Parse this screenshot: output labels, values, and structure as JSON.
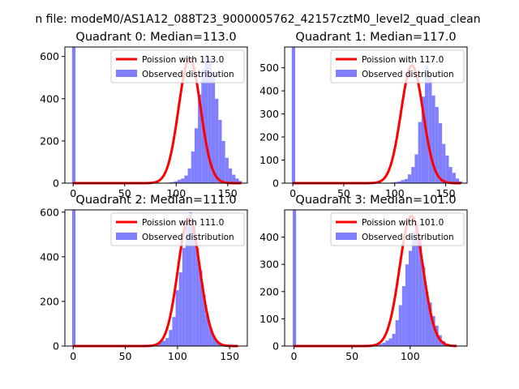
{
  "figure": {
    "suptitle": "n file: modeM0/AS1A12_088T23_9000005762_42157cztM0_level2_quad_clean"
  },
  "colors": {
    "poisson": "#ff0000",
    "observed": "#8080ff"
  },
  "chart_data": [
    {
      "type": "bar",
      "title": "Quadrant 0: Median=113.0",
      "xlim": [
        -8,
        169
      ],
      "ylim": [
        0,
        645
      ],
      "xticks": [
        0,
        50,
        100,
        150
      ],
      "yticks": [
        0,
        200,
        400,
        600
      ],
      "legend": "top-right",
      "poisson_label": "Poission with 113.0",
      "observed_label": "Observed distribution",
      "poisson": {
        "lambda": 113.0,
        "peak": 590,
        "x_range": [
          0,
          163
        ]
      },
      "histogram": {
        "bin_start": -1,
        "bin_width": 3.3,
        "counts": [
          645,
          0,
          0,
          0,
          0,
          0,
          0,
          0,
          0,
          0,
          0,
          0,
          0,
          0,
          0,
          0,
          0,
          0,
          0,
          0,
          0,
          0,
          0,
          0,
          0,
          0,
          0,
          0,
          3,
          5,
          9,
          16,
          22,
          36,
          70,
          150,
          260,
          420,
          540,
          610,
          590,
          530,
          400,
          300,
          200,
          120,
          70,
          40,
          22,
          10
        ]
      }
    },
    {
      "type": "bar",
      "title": "Quadrant 1: Median=117.0",
      "xlim": [
        -8,
        171
      ],
      "ylim": [
        0,
        590
      ],
      "xticks": [
        0,
        50,
        100,
        150
      ],
      "yticks": [
        0,
        100,
        200,
        300,
        400,
        500
      ],
      "legend": "top-right",
      "poisson_label": "Poission with 117.0",
      "observed_label": "Observed distribution",
      "poisson": {
        "lambda": 117.0,
        "peak": 510,
        "x_range": [
          0,
          165
        ]
      },
      "histogram": {
        "bin_start": -1,
        "bin_width": 3.35,
        "counts": [
          590,
          0,
          0,
          0,
          0,
          0,
          0,
          0,
          0,
          0,
          0,
          0,
          0,
          0,
          0,
          0,
          0,
          0,
          0,
          0,
          0,
          0,
          0,
          0,
          0,
          0,
          0,
          0,
          0,
          3,
          5,
          8,
          13,
          18,
          38,
          70,
          125,
          265,
          375,
          510,
          470,
          380,
          330,
          260,
          170,
          120,
          70,
          45,
          20,
          8
        ]
      }
    },
    {
      "type": "bar",
      "title": "Quadrant 2: Median=111.0",
      "xlim": [
        -8,
        167
      ],
      "ylim": [
        0,
        610
      ],
      "xticks": [
        0,
        50,
        100,
        150
      ],
      "yticks": [
        0,
        200,
        400,
        600
      ],
      "legend": "top-right",
      "poisson_label": "Poission with 111.0",
      "observed_label": "Observed distribution",
      "poisson": {
        "lambda": 111.0,
        "peak": 572,
        "x_range": [
          0,
          158
        ]
      },
      "histogram": {
        "bin_start": -1,
        "bin_width": 3.2,
        "counts": [
          610,
          0,
          0,
          0,
          0,
          0,
          0,
          0,
          0,
          0,
          0,
          0,
          0,
          0,
          0,
          0,
          0,
          0,
          0,
          0,
          0,
          0,
          0,
          3,
          5,
          10,
          18,
          24,
          36,
          72,
          130,
          250,
          330,
          440,
          560,
          600,
          560,
          440,
          340,
          230,
          140,
          80,
          45,
          22,
          10,
          5,
          3,
          0,
          0,
          0
        ]
      }
    },
    {
      "type": "bar",
      "title": "Quadrant 3: Median=101.0",
      "xlim": [
        -8,
        149
      ],
      "ylim": [
        0,
        500
      ],
      "xticks": [
        0,
        50,
        100
      ],
      "yticks": [
        0,
        100,
        200,
        300,
        400
      ],
      "legend": "top-right",
      "poisson_label": "Poission with 101.0",
      "observed_label": "Observed distribution",
      "poisson": {
        "lambda": 101.0,
        "peak": 478,
        "x_range": [
          0,
          140
        ]
      },
      "histogram": {
        "bin_start": -1,
        "bin_width": 2.85,
        "counts": [
          500,
          0,
          0,
          0,
          0,
          0,
          0,
          0,
          0,
          0,
          0,
          0,
          0,
          0,
          0,
          0,
          0,
          0,
          0,
          0,
          0,
          0,
          0,
          3,
          4,
          6,
          8,
          12,
          20,
          28,
          45,
          95,
          150,
          220,
          300,
          350,
          420,
          450,
          400,
          290,
          200,
          160,
          110,
          75,
          40,
          18,
          8,
          3,
          0,
          0
        ]
      }
    }
  ]
}
